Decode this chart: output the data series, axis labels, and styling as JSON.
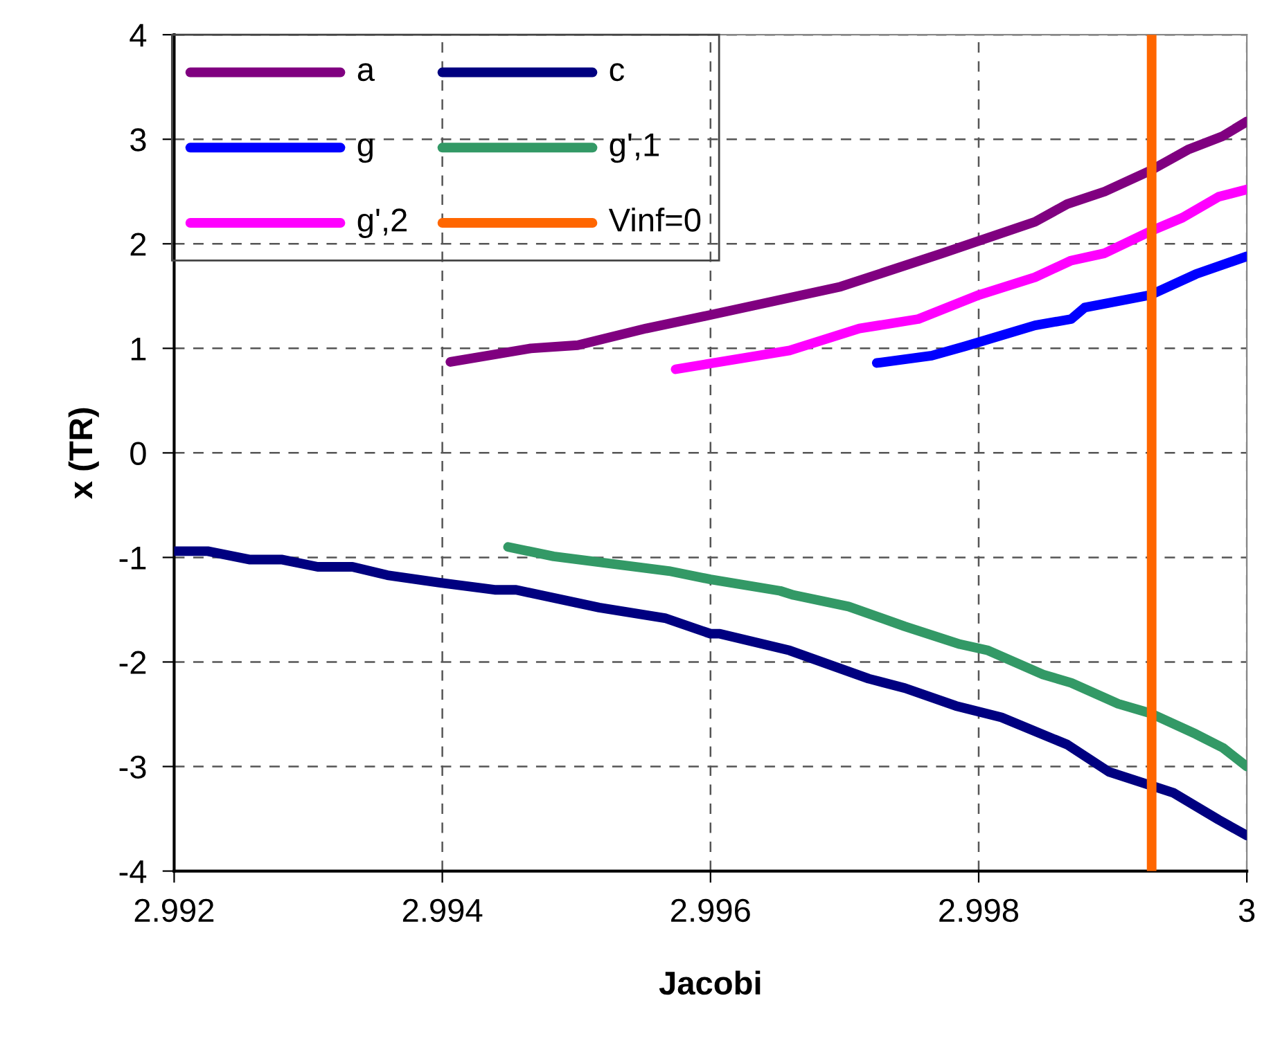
{
  "chart_data": {
    "type": "line",
    "xlabel": "Jacobi",
    "ylabel": "x (TR)",
    "xlim": [
      2.992,
      3.0
    ],
    "xticks": [
      2.992,
      2.994,
      2.996,
      2.998,
      3
    ],
    "ylim": [
      -4,
      4
    ],
    "yticks": [
      -4,
      -3,
      -2,
      -1,
      0,
      1,
      2,
      3,
      4
    ],
    "grid": true,
    "legend": "top left",
    "line_style": "solid",
    "marker": "none",
    "series": [
      {
        "name": "a",
        "color": "#800080",
        "x": [
          2.99406,
          2.99466,
          2.99501,
          2.99552,
          2.996,
          2.99697,
          2.99773,
          2.99842,
          2.99866,
          2.99894,
          2.99928,
          2.99956,
          2.99982,
          3.0
        ],
        "values": [
          0.87,
          1.0,
          1.03,
          1.19,
          1.32,
          1.59,
          1.91,
          2.21,
          2.38,
          2.5,
          2.7,
          2.9,
          3.03,
          3.17
        ]
      },
      {
        "name": "c",
        "color": "#000080",
        "x": [
          2.992,
          2.99225,
          2.99256,
          2.9928,
          2.99307,
          2.99333,
          2.99359,
          2.99397,
          2.99439,
          2.99455,
          2.99517,
          2.99566,
          2.996,
          2.99607,
          2.99659,
          2.99718,
          2.99745,
          2.99783,
          2.99817,
          2.99866,
          2.99897,
          2.99928,
          2.99945,
          2.99979,
          3.0
        ],
        "values": [
          -0.94,
          -0.94,
          -1.02,
          -1.02,
          -1.09,
          -1.09,
          -1.17,
          -1.24,
          -1.31,
          -1.31,
          -1.48,
          -1.58,
          -1.73,
          -1.73,
          -1.89,
          -2.16,
          -2.25,
          -2.42,
          -2.53,
          -2.79,
          -3.05,
          -3.18,
          -3.25,
          -3.51,
          -3.66
        ]
      },
      {
        "name": "g",
        "color": "#0000ff",
        "x": [
          2.99724,
          2.99765,
          2.9979,
          2.99842,
          2.99869,
          2.99879,
          2.99928,
          2.99962,
          3.0
        ],
        "values": [
          0.86,
          0.93,
          1.02,
          1.22,
          1.28,
          1.39,
          1.51,
          1.71,
          1.88
        ]
      },
      {
        "name": "g',1",
        "color": "#339966",
        "x": [
          2.99449,
          2.99483,
          2.99569,
          2.996,
          2.99652,
          2.99662,
          2.99703,
          2.99745,
          2.99786,
          2.99807,
          2.99848,
          2.99869,
          2.99904,
          2.99928,
          2.99962,
          2.99982,
          3.0
        ],
        "values": [
          -0.9,
          -0.99,
          -1.13,
          -1.21,
          -1.32,
          -1.36,
          -1.47,
          -1.66,
          -1.83,
          -1.89,
          -2.12,
          -2.2,
          -2.4,
          -2.49,
          -2.69,
          -2.82,
          -3.0
        ]
      },
      {
        "name": "g',2",
        "color": "#ff00ff",
        "x": [
          2.99574,
          2.99659,
          2.99711,
          2.99755,
          2.998,
          2.99842,
          2.99869,
          2.99894,
          2.99928,
          2.99952,
          2.99979,
          3.0
        ],
        "values": [
          0.8,
          0.98,
          1.19,
          1.28,
          1.51,
          1.68,
          1.84,
          1.91,
          2.12,
          2.25,
          2.45,
          2.52
        ]
      },
      {
        "name": "Vinf=0",
        "color": "#ff6600",
        "x": [
          2.99929,
          2.99929
        ],
        "values": [
          -4,
          4
        ]
      }
    ]
  }
}
